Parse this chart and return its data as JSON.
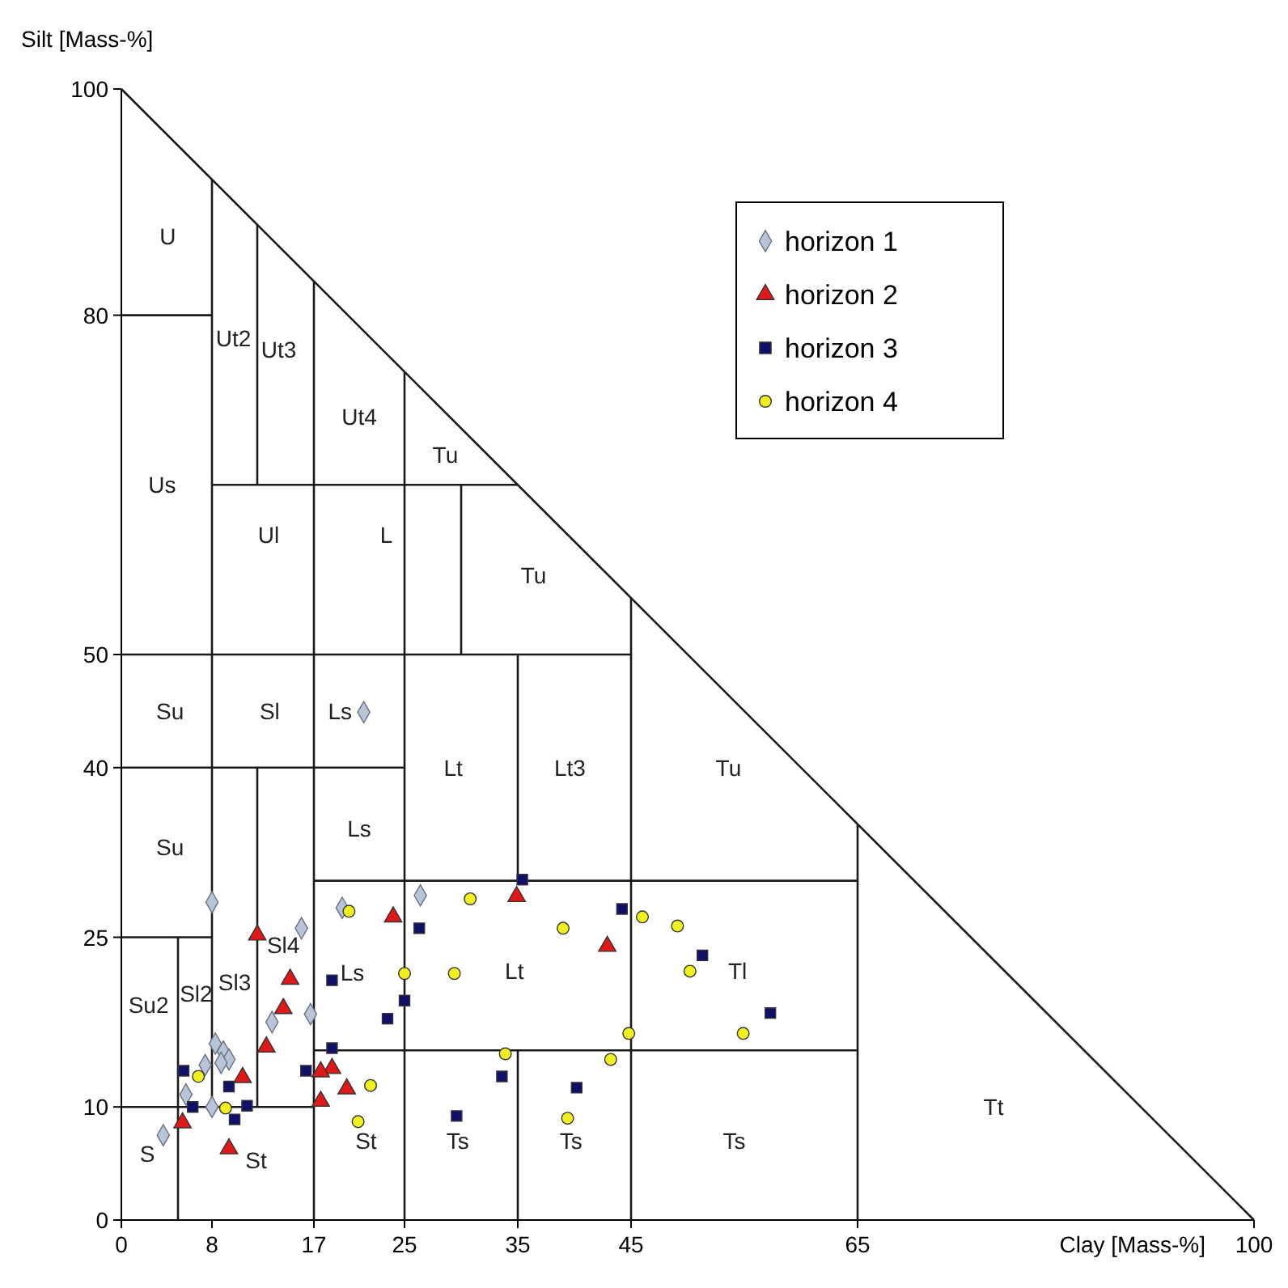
{
  "chart_data": {
    "type": "scatter",
    "xlabel": "Clay [Mass-%]",
    "ylabel": "Silt [Mass-%]",
    "xlim": [
      0,
      100
    ],
    "ylim": [
      0,
      100
    ],
    "xticks": [
      0,
      8,
      17,
      25,
      35,
      45,
      65,
      100
    ],
    "yticks": [
      0,
      10,
      25,
      40,
      50,
      80,
      100
    ],
    "legend": "top right",
    "series": [
      {
        "type": "line",
        "color": "#1a1a1a",
        "marker": "none",
        "x": [
          0,
          100
        ],
        "values": [
          100,
          0
        ]
      },
      {
        "type": "line",
        "color": "#1a1a1a",
        "marker": "none",
        "x": [
          0,
          8
        ],
        "values": [
          80,
          80
        ]
      },
      {
        "type": "line",
        "color": "#1a1a1a",
        "marker": "none",
        "x": [
          8,
          8
        ],
        "values": [
          92,
          10
        ]
      },
      {
        "type": "line",
        "color": "#1a1a1a",
        "marker": "none",
        "x": [
          12,
          12
        ],
        "values": [
          88,
          65
        ]
      },
      {
        "type": "line",
        "color": "#1a1a1a",
        "marker": "none",
        "x": [
          17,
          17
        ],
        "values": [
          83,
          0
        ]
      },
      {
        "type": "line",
        "color": "#1a1a1a",
        "marker": "none",
        "x": [
          25,
          25
        ],
        "values": [
          75,
          0
        ]
      },
      {
        "type": "line",
        "color": "#1a1a1a",
        "marker": "none",
        "x": [
          8,
          35
        ],
        "values": [
          65,
          65
        ]
      },
      {
        "type": "line",
        "color": "#1a1a1a",
        "marker": "none",
        "x": [
          30,
          30
        ],
        "values": [
          65,
          50
        ]
      },
      {
        "type": "line",
        "color": "#1a1a1a",
        "marker": "none",
        "x": [
          0,
          45
        ],
        "values": [
          50,
          50
        ]
      },
      {
        "type": "line",
        "color": "#1a1a1a",
        "marker": "none",
        "x": [
          45,
          45
        ],
        "values": [
          55,
          0
        ]
      },
      {
        "type": "line",
        "color": "#1a1a1a",
        "marker": "none",
        "x": [
          0,
          25
        ],
        "values": [
          40,
          40
        ]
      },
      {
        "type": "line",
        "color": "#1a1a1a",
        "marker": "none",
        "x": [
          35,
          35
        ],
        "values": [
          50,
          30
        ]
      },
      {
        "type": "line",
        "color": "#1a1a1a",
        "marker": "none",
        "x": [
          17,
          65
        ],
        "values": [
          30,
          30
        ]
      },
      {
        "type": "line",
        "color": "#1a1a1a",
        "marker": "none",
        "x": [
          65,
          65
        ],
        "values": [
          35,
          0
        ]
      },
      {
        "type": "line",
        "color": "#1a1a1a",
        "marker": "none",
        "x": [
          12,
          12
        ],
        "values": [
          40,
          10
        ]
      },
      {
        "type": "line",
        "color": "#1a1a1a",
        "marker": "none",
        "x": [
          0,
          8
        ],
        "values": [
          25,
          25
        ]
      },
      {
        "type": "line",
        "color": "#1a1a1a",
        "marker": "none",
        "x": [
          5,
          5
        ],
        "values": [
          25,
          0
        ]
      },
      {
        "type": "line",
        "color": "#1a1a1a",
        "marker": "none",
        "x": [
          0,
          17
        ],
        "values": [
          10,
          10
        ]
      },
      {
        "type": "line",
        "color": "#1a1a1a",
        "marker": "none",
        "x": [
          17,
          65
        ],
        "values": [
          15,
          15
        ]
      },
      {
        "type": "line",
        "color": "#1a1a1a",
        "marker": "none",
        "x": [
          35,
          35
        ],
        "values": [
          15,
          0
        ]
      },
      {
        "name": "horizon 1",
        "marker": "diamond",
        "color": "#b8c4d8",
        "x": [
          26.4,
          19.5,
          15.9,
          16.7,
          8.0,
          13.3,
          8.3,
          9.0,
          9.5,
          8.8,
          7.4,
          5.7,
          8.0,
          3.7,
          21.4
        ],
        "values": [
          28.7,
          27.6,
          25.8,
          18.2,
          28.1,
          17.5,
          15.6,
          14.9,
          14.2,
          13.9,
          13.7,
          11.1,
          10.0,
          7.5,
          44.9
        ]
      },
      {
        "name": "horizon 2",
        "marker": "triangle",
        "color": "#e01818",
        "x": [
          24.0,
          34.9,
          42.9,
          19.9,
          18.6,
          17.6,
          17.6,
          12.0,
          14.9,
          14.3,
          12.8,
          10.7,
          5.4,
          9.5
        ],
        "values": [
          26.8,
          28.6,
          24.2,
          11.6,
          13.4,
          13.1,
          10.5,
          25.2,
          21.3,
          18.7,
          15.3,
          12.6,
          8.6,
          6.3
        ]
      },
      {
        "name": "horizon 3",
        "marker": "square",
        "color": "#10106a",
        "x": [
          35.4,
          26.3,
          44.2,
          51.3,
          18.6,
          25.0,
          23.5,
          57.3,
          18.6,
          33.6,
          40.2,
          16.3,
          29.6,
          5.5,
          9.5,
          6.3,
          11.1,
          10.0
        ],
        "values": [
          30.1,
          25.8,
          27.5,
          23.4,
          21.2,
          19.4,
          17.8,
          18.3,
          15.2,
          12.7,
          11.7,
          13.2,
          9.2,
          13.2,
          11.8,
          10.0,
          10.1,
          8.9
        ]
      },
      {
        "name": "horizon 4",
        "marker": "circle",
        "color": "#f0f020",
        "x": [
          20.1,
          30.8,
          39.0,
          46.0,
          49.1,
          50.2,
          25.0,
          29.4,
          54.9,
          44.8,
          33.9,
          43.2,
          22.0,
          39.4,
          20.9,
          6.8,
          9.2
        ],
        "values": [
          27.3,
          28.4,
          25.8,
          26.8,
          26.0,
          22.0,
          21.8,
          21.8,
          16.5,
          16.5,
          14.7,
          14.2,
          11.9,
          9.0,
          8.7,
          12.7,
          9.9
        ]
      }
    ],
    "annotations": [
      "U",
      "Ut2",
      "Ut3",
      "Ut4",
      "Tu",
      "Us",
      "Ul",
      "L",
      "Tu",
      "Su",
      "Sl",
      "Ls",
      "Lt",
      "Lt3",
      "Tu",
      "Su",
      "Ls",
      "Ls",
      "Lt",
      "Tl",
      "Su2",
      "Sl2",
      "Sl3",
      "Sl4",
      "S",
      "St",
      "St",
      "Ts",
      "Ts",
      "Ts",
      "Tt"
    ]
  }
}
